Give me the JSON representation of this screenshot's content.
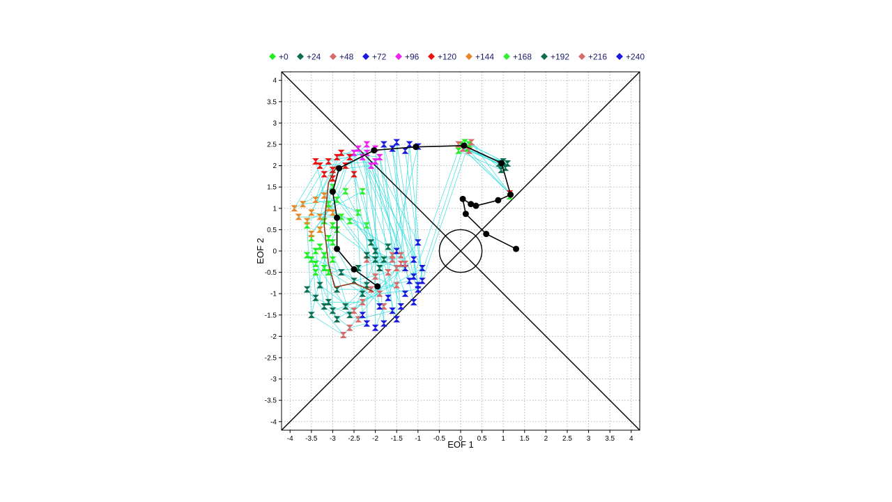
{
  "chart_data": {
    "type": "scatter",
    "xlabel": "EOF 1",
    "ylabel": "EOF 2",
    "xlim": [
      -4.2,
      4.2
    ],
    "ylim": [
      -4.2,
      4.2
    ],
    "grid": true,
    "grid_style": "dotted",
    "legend_position": "top",
    "x_ticks": [
      "-4",
      "-3.5",
      "-3",
      "-2.5",
      "-2",
      "-1.5",
      "-1",
      "-0.5",
      "0",
      "0.5",
      "1",
      "1.5",
      "2",
      "2.5",
      "3",
      "3.5",
      "4"
    ],
    "y_ticks": [
      "4",
      "3.5",
      "3",
      "2.5",
      "2",
      "1.5",
      "1",
      "0.5",
      "0",
      "-0.5",
      "-1",
      "-1.5",
      "-2",
      "-2.5",
      "-3",
      "-3.5",
      "-4"
    ],
    "reference_lines": [
      {
        "from": [
          -4.2,
          4.2
        ],
        "to": [
          4.2,
          -4.2
        ]
      },
      {
        "from": [
          -4.2,
          -4.2
        ],
        "to": [
          4.2,
          4.2
        ]
      }
    ],
    "unit_circle_radius": 0.5,
    "ensemble_line_color": "#33dddd",
    "legend": [
      {
        "label": "+0",
        "color": "#22ee22"
      },
      {
        "label": "+24",
        "color": "#0b6e4f"
      },
      {
        "label": "+48",
        "color": "#d96b6b"
      },
      {
        "label": "+72",
        "color": "#1a1adf"
      },
      {
        "label": "+96",
        "color": "#ee22ee"
      },
      {
        "label": "+120",
        "color": "#e81212"
      },
      {
        "label": "+144",
        "color": "#e8882a"
      },
      {
        "label": "+168",
        "color": "#33ee33"
      },
      {
        "label": "+192",
        "color": "#0b6e4f"
      },
      {
        "label": "+216",
        "color": "#d96b6b"
      },
      {
        "label": "+240",
        "color": "#1a1adf"
      }
    ],
    "series": [
      {
        "lead": "+0",
        "color": "#22ee22",
        "points": [
          [
            -3.6,
            0.6
          ],
          [
            -3.5,
            -0.2
          ],
          [
            -3.2,
            -0.1
          ],
          [
            -3.3,
            0.1
          ],
          [
            -3.1,
            0.3
          ],
          [
            -3.4,
            -0.3
          ],
          [
            -3.0,
            0.2
          ],
          [
            -3.2,
            -0.4
          ],
          [
            -3.5,
            0.3
          ],
          [
            -3.3,
            0.5
          ],
          [
            -3.0,
            -0.2
          ],
          [
            -3.4,
            0.0
          ],
          [
            -3.1,
            -0.5
          ],
          [
            -3.6,
            -0.1
          ],
          [
            -2.9,
            0.5
          ],
          [
            -3.2,
            0.7
          ],
          [
            -3.4,
            -0.5
          ],
          [
            -3.0,
            0.6
          ]
        ]
      },
      {
        "lead": "+24",
        "color": "#0b6e4f",
        "points": [
          [
            -3.5,
            -1.5
          ],
          [
            -3.3,
            -0.8
          ],
          [
            -3.1,
            -1.2
          ],
          [
            -2.9,
            -0.9
          ],
          [
            -3.0,
            -1.4
          ],
          [
            -2.7,
            -1.3
          ],
          [
            -2.5,
            -0.7
          ],
          [
            -2.3,
            -1.0
          ],
          [
            -3.4,
            -1.1
          ],
          [
            -2.8,
            -0.5
          ],
          [
            -2.6,
            -1.5
          ],
          [
            -3.2,
            -1.3
          ],
          [
            -2.4,
            -0.4
          ],
          [
            -2.2,
            -0.8
          ],
          [
            -3.6,
            -0.9
          ],
          [
            -2.0,
            -0.2
          ],
          [
            -2.9,
            -1.6
          ]
        ]
      },
      {
        "lead": "+48",
        "color": "#d96b6b",
        "points": [
          [
            -2.75,
            -1.97
          ],
          [
            -2.5,
            -1.4
          ],
          [
            -2.3,
            -1.2
          ],
          [
            -2.1,
            -0.9
          ],
          [
            -1.9,
            -1.0
          ],
          [
            -2.0,
            -0.6
          ],
          [
            -1.7,
            -0.5
          ],
          [
            -1.5,
            -0.8
          ],
          [
            -2.4,
            -1.6
          ],
          [
            -1.8,
            -1.3
          ],
          [
            -1.4,
            -0.3
          ],
          [
            -2.6,
            -1.8
          ],
          [
            -1.6,
            -0.1
          ],
          [
            -2.2,
            -0.2
          ]
        ]
      },
      {
        "lead": "+72",
        "color": "#1a1adf",
        "points": [
          [
            -1.0,
            0.2
          ],
          [
            -1.1,
            -0.2
          ],
          [
            -0.9,
            -0.4
          ],
          [
            -1.2,
            -0.7
          ],
          [
            -1.0,
            -0.9
          ],
          [
            -1.3,
            -1.0
          ],
          [
            -1.4,
            -1.3
          ],
          [
            -1.5,
            -1.6
          ],
          [
            -1.6,
            -1.4
          ],
          [
            -1.8,
            -1.7
          ],
          [
            -2.0,
            -1.8
          ],
          [
            -2.2,
            -1.7
          ],
          [
            -1.5,
            0.0
          ],
          [
            -1.3,
            -0.4
          ],
          [
            -1.7,
            -1.1
          ],
          [
            -2.3,
            -1.5
          ],
          [
            -1.1,
            -1.2
          ],
          [
            -1.9,
            -1.3
          ]
        ]
      },
      {
        "lead": "+96",
        "color": "#ee22ee",
        "points": [
          [
            -2.0,
            2.1
          ],
          [
            -2.2,
            2.3
          ],
          [
            -2.4,
            2.4
          ],
          [
            -2.1,
            2.0
          ],
          [
            -2.3,
            2.2
          ],
          [
            -2.5,
            2.3
          ],
          [
            -1.9,
            2.2
          ],
          [
            -2.6,
            2.2
          ],
          [
            -2.0,
            2.4
          ],
          [
            -2.2,
            2.5
          ]
        ]
      },
      {
        "lead": "+120",
        "color": "#e81212",
        "points": [
          [
            -3.3,
            2.0
          ],
          [
            -3.1,
            2.1
          ],
          [
            -2.9,
            2.2
          ],
          [
            -3.0,
            1.9
          ],
          [
            -2.7,
            2.0
          ],
          [
            -3.2,
            1.8
          ],
          [
            -2.8,
            2.3
          ],
          [
            -3.4,
            2.1
          ],
          [
            -2.6,
            2.2
          ],
          [
            -3.0,
            1.7
          ],
          [
            -2.5,
            1.8
          ]
        ]
      },
      {
        "lead": "+144",
        "color": "#e8882a",
        "points": [
          [
            -3.9,
            1.0
          ],
          [
            -3.7,
            1.1
          ],
          [
            -3.5,
            0.9
          ],
          [
            -3.3,
            0.8
          ],
          [
            -3.1,
            1.0
          ],
          [
            -3.4,
            1.2
          ],
          [
            -3.6,
            0.7
          ],
          [
            -3.2,
            1.3
          ],
          [
            -3.0,
            0.9
          ],
          [
            -3.3,
            0.5
          ],
          [
            -3.5,
            0.4
          ],
          [
            -3.8,
            0.8
          ]
        ]
      },
      {
        "lead": "+168",
        "color": "#33ee33",
        "points": [
          [
            -3.0,
            1.5
          ],
          [
            -2.9,
            1.2
          ],
          [
            -2.8,
            0.8
          ],
          [
            -2.7,
            1.4
          ],
          [
            -2.6,
            0.7
          ],
          [
            -3.1,
            1.1
          ],
          [
            -2.3,
            1.4
          ],
          [
            -2.4,
            0.9
          ],
          [
            -2.2,
            0.6
          ]
        ]
      },
      {
        "lead": "+192",
        "color": "#0b6e4f",
        "points": [
          [
            -2.0,
            0.0
          ],
          [
            -1.8,
            -0.2
          ],
          [
            -1.9,
            -0.4
          ],
          [
            -2.1,
            0.2
          ],
          [
            -1.7,
            0.1
          ],
          [
            -2.2,
            -0.1
          ]
        ]
      },
      {
        "lead": "+216",
        "color": "#d96b6b",
        "points": [
          [
            -1.6,
            -0.2
          ],
          [
            -1.5,
            -0.4
          ],
          [
            -1.4,
            -0.1
          ],
          [
            -1.7,
            -0.5
          ],
          [
            -1.3,
            -0.3
          ]
        ]
      },
      {
        "lead": "+240",
        "color": "#1a1adf",
        "points": [
          [
            -1.8,
            2.5
          ],
          [
            -1.5,
            2.55
          ],
          [
            -1.2,
            2.5
          ],
          [
            -1.0,
            2.45
          ],
          [
            -1.6,
            2.4
          ],
          [
            -1.3,
            2.35
          ]
        ]
      },
      {
        "lead": "+240",
        "color": "#1a1adf",
        "points": [
          [
            -1.1,
            -0.6
          ],
          [
            -1.0,
            -0.8
          ],
          [
            -0.9,
            -0.7
          ]
        ]
      },
      {
        "lead": "+0",
        "color": "#22ee22",
        "points": [
          [
            -0.0,
            2.5
          ],
          [
            0.1,
            2.55
          ],
          [
            0.15,
            2.4
          ],
          [
            -0.05,
            2.35
          ],
          [
            0.2,
            2.5
          ]
        ]
      },
      {
        "lead": "+24",
        "color": "#0b6e4f",
        "points": [
          [
            0.9,
            2.05
          ],
          [
            1.0,
            2.1
          ],
          [
            1.05,
            1.95
          ],
          [
            0.95,
            1.9
          ],
          [
            1.1,
            2.05
          ]
        ]
      },
      {
        "lead": "+48",
        "color": "#d96b6b",
        "points": [
          [
            0.05,
            2.4
          ],
          [
            0.2,
            2.35
          ],
          [
            -0.05,
            2.5
          ],
          [
            0.25,
            2.55
          ]
        ]
      },
      {
        "lead": "+120",
        "color": "#e81212",
        "points": [
          [
            1.15,
            1.35
          ]
        ]
      },
      {
        "lead": "+168",
        "color": "#33ee33",
        "points": [
          [
            1.15,
            1.28
          ]
        ]
      }
    ],
    "mean_track": [
      [
        1.3,
        0.05
      ],
      [
        0.6,
        0.4
      ],
      [
        0.12,
        0.87
      ],
      [
        0.05,
        1.22
      ],
      [
        0.24,
        1.1
      ],
      [
        0.36,
        1.06
      ],
      [
        0.88,
        1.19
      ],
      [
        1.17,
        1.32
      ],
      [
        0.96,
        2.06
      ],
      [
        0.08,
        2.47
      ],
      [
        -1.05,
        2.44
      ],
      [
        -2.03,
        2.36
      ],
      [
        -2.85,
        1.94
      ],
      [
        -3.0,
        1.39
      ],
      [
        -2.9,
        0.78
      ],
      [
        -2.9,
        0.05
      ],
      [
        -2.5,
        -0.43
      ],
      [
        -1.95,
        -0.83
      ]
    ],
    "brown_track": [
      [
        -2.9,
        2.0
      ],
      [
        -3.1,
        1.6
      ],
      [
        -3.2,
        0.6
      ],
      [
        -3.1,
        -0.3
      ],
      [
        -2.95,
        -0.85
      ],
      [
        -2.5,
        -0.75
      ],
      [
        -2.05,
        -0.95
      ]
    ]
  }
}
